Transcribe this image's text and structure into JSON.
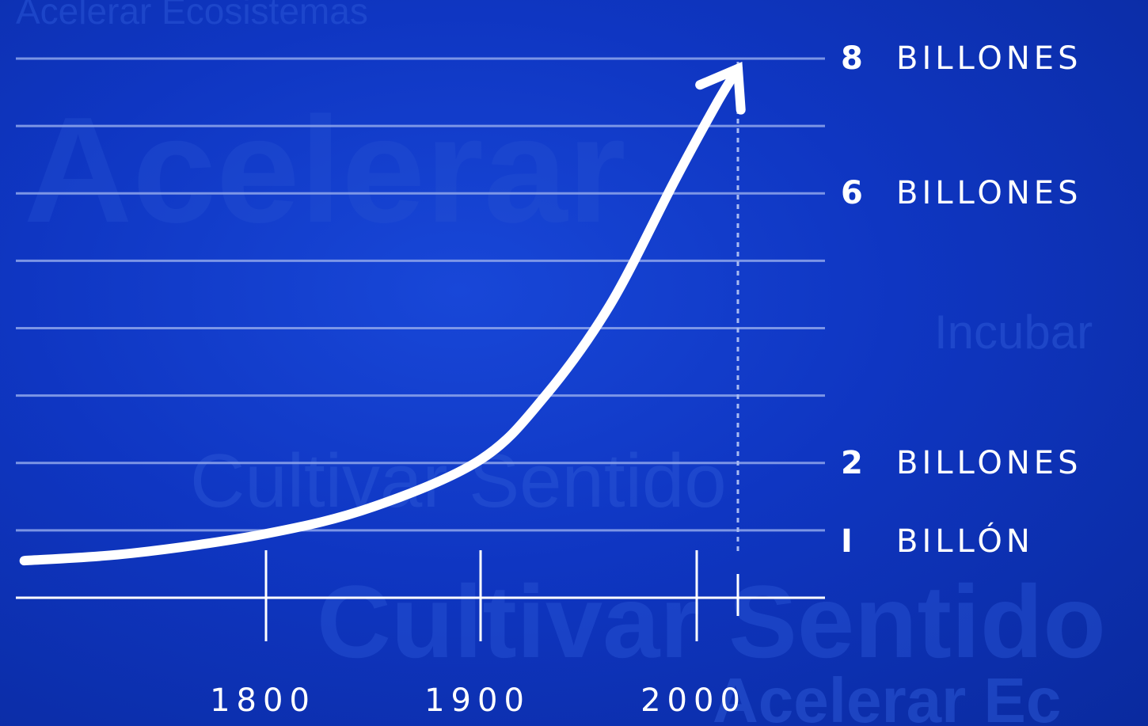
{
  "background": {
    "color": "#0f36c2",
    "watermark_words": [
      "Acelerar Ecosistemas",
      "Acelerar",
      "Cultivar Sentido",
      "Cultivar Sentido",
      "Incubar",
      "Acelerar Ec"
    ]
  },
  "chart_data": {
    "type": "line",
    "title": "",
    "xlabel": "",
    "ylabel": "",
    "x_ticks": [
      1800,
      1900,
      2000
    ],
    "x_tick_labels": [
      "1800",
      "1900",
      "2000"
    ],
    "extra_tick": 2020,
    "xlim": [
      1690,
      2060
    ],
    "ylim": [
      0,
      8.4
    ],
    "y_labels": [
      {
        "value": 8,
        "num": "8",
        "unit": "BILLONES"
      },
      {
        "value": 6,
        "num": "6",
        "unit": "BILLONES"
      },
      {
        "value": 2,
        "num": "2",
        "unit": "BILLONES"
      },
      {
        "value": 1,
        "num": "I",
        "unit": "BILLÓN"
      }
    ],
    "gridlines": [
      8,
      7,
      6,
      5,
      4,
      3,
      2,
      1
    ],
    "series": [
      {
        "x": [
          1692,
          1740,
          1800,
          1850,
          1900,
          1930,
          1960,
          1990,
          2010,
          2020
        ],
        "y": [
          0.55,
          0.66,
          0.95,
          1.35,
          2.05,
          3.0,
          4.35,
          6.2,
          7.35,
          7.85
        ]
      }
    ],
    "reference_line_x": 2020,
    "line_color": "#ffffff",
    "grid_color": "#8fa6ec"
  }
}
